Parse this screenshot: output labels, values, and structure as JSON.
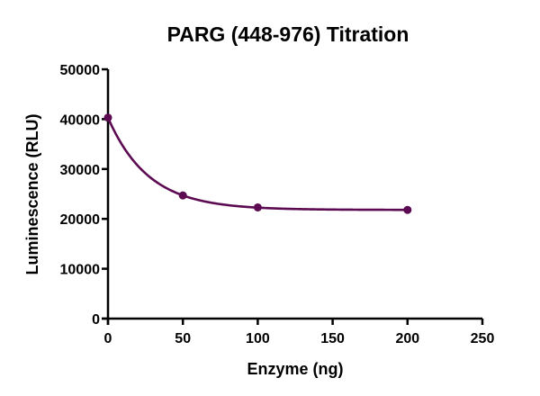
{
  "chart_data": {
    "type": "line",
    "title": "PARG (448-976) Titration",
    "xlabel": "Enzyme (ng)",
    "ylabel": "Luminescence (RLU)",
    "xlim": [
      0,
      250
    ],
    "ylim": [
      0,
      50000
    ],
    "x_ticks": [
      0,
      50,
      100,
      150,
      200,
      250
    ],
    "y_ticks": [
      0,
      10000,
      20000,
      30000,
      40000,
      50000
    ],
    "grid": false,
    "legend": null,
    "series": [
      {
        "name": "PARG (448-976)",
        "color": "#5c0a52",
        "marker": "circle",
        "x": [
          0,
          50,
          100,
          200
        ],
        "values": [
          40300,
          24700,
          22300,
          21800
        ],
        "fit": {
          "type": "exponential-decay",
          "plateau": 21800,
          "span": 18500,
          "k": 0.037
        }
      }
    ]
  }
}
